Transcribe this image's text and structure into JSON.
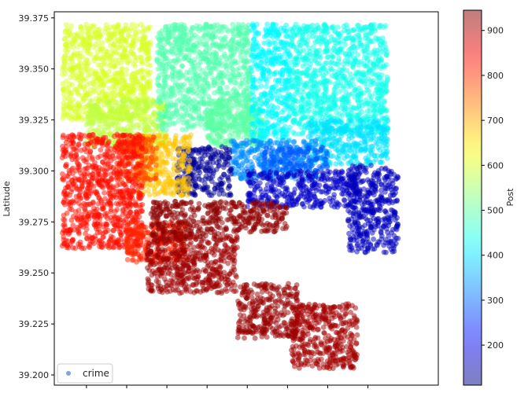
{
  "chart_data": {
    "type": "scatter",
    "title": "",
    "xlabel": "",
    "ylabel": "Latitude",
    "ylim": [
      39.195,
      39.378
    ],
    "xlim": [
      -76.716,
      -76.525
    ],
    "y_ticks": [
      39.2,
      39.225,
      39.25,
      39.275,
      39.3,
      39.325,
      39.35,
      39.375
    ],
    "y_tick_labels": [
      "39.200",
      "39.225",
      "39.250",
      "39.275",
      "39.300",
      "39.325",
      "39.350",
      "39.375"
    ],
    "x_ticks": [
      -76.7,
      -76.68,
      -76.66,
      -76.64,
      -76.62,
      -76.6,
      -76.58,
      -76.56
    ],
    "x_tick_labels_visible": false,
    "grid": false,
    "marker_alpha": 0.5,
    "color_variable": "Post",
    "colormap": "jet",
    "colorbar": {
      "label": "Post",
      "range": [
        111,
        945
      ],
      "ticks": [
        200,
        300,
        400,
        500,
        600,
        700,
        800,
        900
      ],
      "tick_labels": [
        "200",
        "300",
        "400",
        "500",
        "600",
        "700",
        "800",
        "900"
      ]
    },
    "legend": {
      "placement": "lower-left",
      "entries": [
        "crime"
      ],
      "marker_color": "#6f9fd2"
    },
    "series": [
      {
        "regions": [
          {
            "post": 600,
            "lon": [
              -76.712,
              -76.668
            ],
            "lat": [
              39.325,
              39.372
            ]
          },
          {
            "post": 580,
            "lon": [
              -76.7,
              -76.66
            ],
            "lat": [
              39.312,
              39.335
            ]
          },
          {
            "post": 490,
            "lon": [
              -76.665,
              -76.618
            ],
            "lat": [
              39.32,
              39.372
            ]
          },
          {
            "post": 500,
            "lon": [
              -76.64,
              -76.612
            ],
            "lat": [
              39.312,
              39.335
            ]
          },
          {
            "post": 420,
            "lon": [
              -76.618,
              -76.598
            ],
            "lat": [
              39.315,
              39.372
            ]
          },
          {
            "post": 440,
            "lon": [
              -76.598,
              -76.55
            ],
            "lat": [
              39.318,
              39.372
            ]
          },
          {
            "post": 400,
            "lon": [
              -76.59,
              -76.55
            ],
            "lat": [
              39.303,
              39.325
            ]
          },
          {
            "post": 330,
            "lon": [
              -76.628,
              -76.585
            ],
            "lat": [
              39.296,
              39.315
            ]
          },
          {
            "post": 290,
            "lon": [
              -76.612,
              -76.58
            ],
            "lat": [
              39.3,
              39.312
            ]
          },
          {
            "post": 170,
            "lon": [
              -76.62,
              -76.565
            ],
            "lat": [
              39.282,
              39.3
            ]
          },
          {
            "post": 160,
            "lon": [
              -76.57,
              -76.545
            ],
            "lat": [
              39.26,
              39.303
            ]
          },
          {
            "post": 130,
            "lon": [
              -76.655,
              -76.628
            ],
            "lat": [
              39.288,
              39.312
            ]
          },
          {
            "post": 680,
            "lon": [
              -76.675,
              -76.648
            ],
            "lat": [
              39.288,
              39.318
            ]
          },
          {
            "post": 780,
            "lon": [
              -76.685,
              -76.665
            ],
            "lat": [
              39.295,
              39.318
            ]
          },
          {
            "post": 830,
            "lon": [
              -76.712,
              -76.672
            ],
            "lat": [
              39.262,
              39.318
            ]
          },
          {
            "post": 810,
            "lon": [
              -76.68,
              -76.65
            ],
            "lat": [
              39.255,
              39.275
            ]
          },
          {
            "post": 935,
            "lon": [
              -76.668,
              -76.63
            ],
            "lat": [
              39.266,
              39.285
            ]
          },
          {
            "post": 930,
            "lon": [
              -76.63,
              -76.6
            ],
            "lat": [
              39.27,
              39.285
            ]
          },
          {
            "post": 920,
            "lon": [
              -76.67,
              -76.625
            ],
            "lat": [
              39.24,
              39.268
            ]
          },
          {
            "post": 925,
            "lon": [
              -76.625,
              -76.595
            ],
            "lat": [
              39.218,
              39.245
            ]
          },
          {
            "post": 915,
            "lon": [
              -76.598,
              -76.565
            ],
            "lat": [
              39.203,
              39.235
            ]
          }
        ]
      }
    ]
  }
}
